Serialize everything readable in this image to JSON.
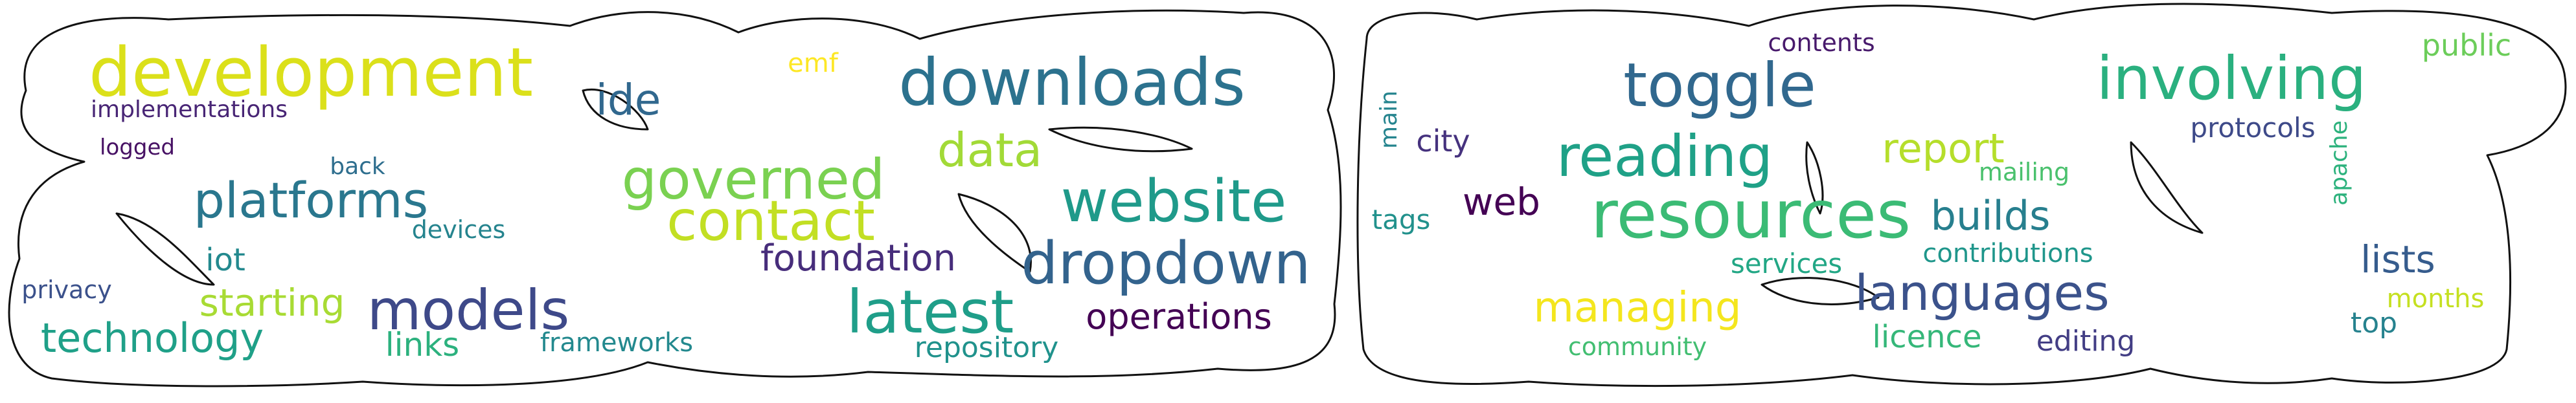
{
  "colors": {
    "background": "#ffffff",
    "outline": "#111111"
  },
  "words": [
    {
      "id": "development",
      "text": "development",
      "color": "#dbe01a"
    },
    {
      "id": "implementations",
      "text": "implementations",
      "color": "#482575"
    },
    {
      "id": "logged",
      "text": "logged",
      "color": "#471164"
    },
    {
      "id": "back",
      "text": "back",
      "color": "#2e6e8e"
    },
    {
      "id": "platforms",
      "text": "platforms",
      "color": "#2a778e"
    },
    {
      "id": "devices",
      "text": "devices",
      "color": "#25848e"
    },
    {
      "id": "iot",
      "text": "iot",
      "color": "#23898e"
    },
    {
      "id": "privacy",
      "text": "privacy",
      "color": "#3b518b"
    },
    {
      "id": "starting",
      "text": "starting",
      "color": "#a8db34"
    },
    {
      "id": "technology",
      "text": "technology",
      "color": "#1fa088"
    },
    {
      "id": "links",
      "text": "links",
      "color": "#2cb17e"
    },
    {
      "id": "models",
      "text": "models",
      "color": "#3e4989"
    },
    {
      "id": "frameworks",
      "text": "frameworks",
      "color": "#23898e"
    },
    {
      "id": "ide",
      "text": "ide",
      "color": "#31688e"
    },
    {
      "id": "emf",
      "text": "emf",
      "color": "#fde725"
    },
    {
      "id": "governed",
      "text": "governed",
      "color": "#7ad151"
    },
    {
      "id": "contact",
      "text": "contact",
      "color": "#c2df23"
    },
    {
      "id": "foundation",
      "text": "foundation",
      "color": "#472d7b"
    },
    {
      "id": "downloads",
      "text": "downloads",
      "color": "#2c728e"
    },
    {
      "id": "data",
      "text": "data",
      "color": "#a2da37"
    },
    {
      "id": "website",
      "text": "website",
      "color": "#1f9a8a"
    },
    {
      "id": "dropdown",
      "text": "dropdown",
      "color": "#33638d"
    },
    {
      "id": "latest",
      "text": "latest",
      "color": "#1f9e89"
    },
    {
      "id": "operations",
      "text": "operations",
      "color": "#440154"
    },
    {
      "id": "repository",
      "text": "repository",
      "color": "#20928c"
    },
    {
      "id": "main",
      "text": "main",
      "color": "#25848e"
    },
    {
      "id": "city",
      "text": "city",
      "color": "#46327e"
    },
    {
      "id": "tags",
      "text": "tags",
      "color": "#21918c"
    },
    {
      "id": "web",
      "text": "web",
      "color": "#440154"
    },
    {
      "id": "toggle",
      "text": "toggle",
      "color": "#31688e"
    },
    {
      "id": "contents",
      "text": "contents",
      "color": "#481a6c"
    },
    {
      "id": "reading",
      "text": "reading",
      "color": "#1fa187"
    },
    {
      "id": "resources",
      "text": "resources",
      "color": "#3bbb75"
    },
    {
      "id": "report",
      "text": "report",
      "color": "#b5de2b"
    },
    {
      "id": "mailing",
      "text": "mailing",
      "color": "#4ac16d"
    },
    {
      "id": "builds",
      "text": "builds",
      "color": "#277f8e"
    },
    {
      "id": "contributions",
      "text": "contributions",
      "color": "#1f968b"
    },
    {
      "id": "services",
      "text": "services",
      "color": "#22a785"
    },
    {
      "id": "managing",
      "text": "managing",
      "color": "#f4e61e"
    },
    {
      "id": "languages",
      "text": "languages",
      "color": "#3b528b"
    },
    {
      "id": "community",
      "text": "community",
      "color": "#42be71"
    },
    {
      "id": "licence",
      "text": "licence",
      "color": "#35b779"
    },
    {
      "id": "editing",
      "text": "editing",
      "color": "#433e85"
    },
    {
      "id": "involving",
      "text": "involving",
      "color": "#2ab07f"
    },
    {
      "id": "public",
      "text": "public",
      "color": "#6ccd5a"
    },
    {
      "id": "protocols",
      "text": "protocols",
      "color": "#3e4a89"
    },
    {
      "id": "apache",
      "text": "apache",
      "color": "#2db27d"
    },
    {
      "id": "lists",
      "text": "lists",
      "color": "#365c8d"
    },
    {
      "id": "months",
      "text": "months",
      "color": "#c5e021"
    },
    {
      "id": "top",
      "text": "top",
      "color": "#26828e"
    }
  ]
}
